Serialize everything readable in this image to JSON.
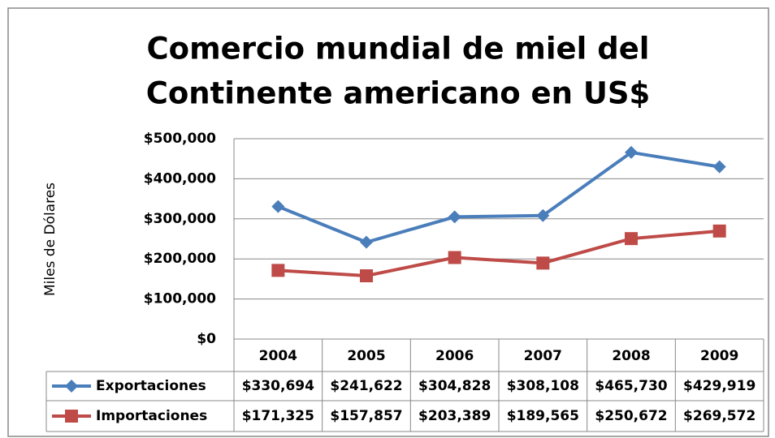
{
  "chart_data": {
    "type": "line",
    "title": [
      "Comercio mundial de miel del",
      "Continente americano en US$"
    ],
    "y_label": "Miles de Dólares",
    "categories": [
      "2004",
      "2005",
      "2006",
      "2007",
      "2008",
      "2009"
    ],
    "series": [
      {
        "name": "Exportaciones",
        "color": "#4a7ebb",
        "marker": "diamond",
        "values": [
          330694,
          241622,
          304828,
          308108,
          465730,
          429919
        ],
        "value_labels": [
          "$330,694",
          "$241,622",
          "$304,828",
          "$308,108",
          "$465,730",
          "$429,919"
        ]
      },
      {
        "name": "Importaciones",
        "color": "#be4b48",
        "marker": "square",
        "values": [
          171325,
          157857,
          203389,
          189565,
          250672,
          269572
        ],
        "value_labels": [
          "$171,325",
          "$157,857",
          "$203,389",
          "$189,565",
          "$250,672",
          "$269,572"
        ]
      }
    ],
    "ylim": [
      0,
      500000
    ],
    "yticks": [
      {
        "value": 0,
        "label": "$0"
      },
      {
        "value": 100000,
        "label": "$100,000"
      },
      {
        "value": 200000,
        "label": "$200,000"
      },
      {
        "value": 300000,
        "label": "$300,000"
      },
      {
        "value": 400000,
        "label": "$400,000"
      },
      {
        "value": 500000,
        "label": "$500,000"
      }
    ],
    "grid": true,
    "data_table": true
  }
}
